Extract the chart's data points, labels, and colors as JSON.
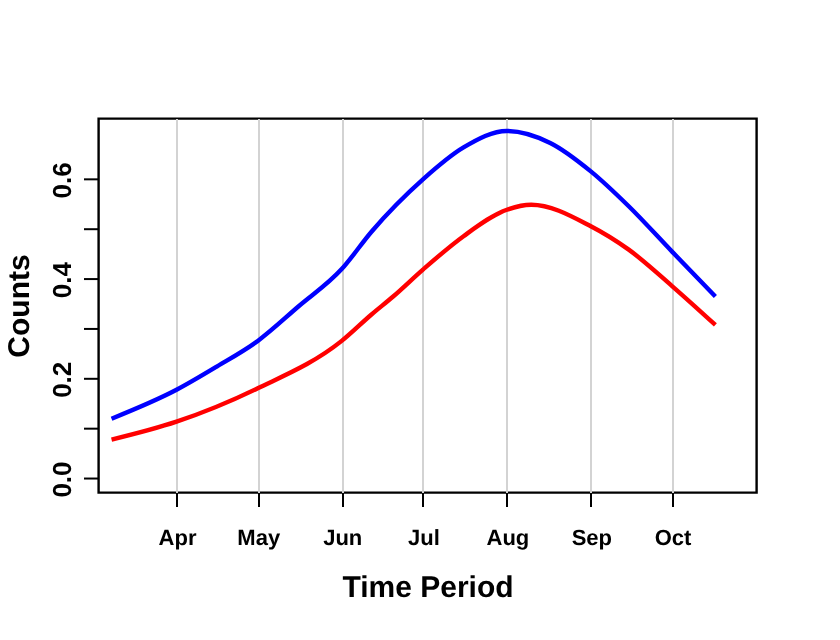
{
  "chart_data": {
    "type": "line",
    "xlabel": "Time Period",
    "ylabel": "Counts",
    "xlim": [
      "--03-03",
      "--11-01"
    ],
    "xticks": [
      {
        "value": "--04-01",
        "label": "Apr"
      },
      {
        "value": "--05-01",
        "label": "May"
      },
      {
        "value": "--06-01",
        "label": "Jun"
      },
      {
        "value": "--07-01",
        "label": "Jul"
      },
      {
        "value": "--08-01",
        "label": "Aug"
      },
      {
        "value": "--09-01",
        "label": "Sep"
      },
      {
        "value": "--10-01",
        "label": "Oct"
      }
    ],
    "ylim": [
      -0.027,
      0.723
    ],
    "yticks": [
      {
        "value": 0,
        "label": "0.0"
      },
      {
        "value": 0.1,
        "label": null
      },
      {
        "value": 0.2,
        "label": "0.2"
      },
      {
        "value": 0.3,
        "label": null
      },
      {
        "value": 0.4,
        "label": "0.4"
      },
      {
        "value": 0.5,
        "label": null
      },
      {
        "value": 0.6,
        "label": "0.6"
      }
    ],
    "grid": "x",
    "series": [
      {
        "color": "#0000ff",
        "x": [
          "--03-08",
          "--04-01",
          "--04-16",
          "--05-01",
          "--05-16",
          "--06-01",
          "--06-12",
          "--07-01",
          "--07-16",
          "--08-01",
          "--08-17",
          "--09-01",
          "--09-15",
          "--10-01",
          "--10-17"
        ],
        "values": [
          0.12,
          0.178,
          0.225,
          0.276,
          0.345,
          0.42,
          0.495,
          0.6,
          0.664,
          0.697,
          0.673,
          0.616,
          0.546,
          0.455,
          0.365
        ]
      },
      {
        "color": "#ff0000",
        "x": [
          "--03-08",
          "--04-01",
          "--05-01",
          "--06-01",
          "--06-12",
          "--06-20",
          "--07-01",
          "--07-16",
          "--08-01",
          "--08-10",
          "--09-01",
          "--09-15",
          "--10-01",
          "--10-17"
        ],
        "values": [
          0.078,
          0.114,
          0.181,
          0.276,
          0.329,
          0.365,
          0.419,
          0.486,
          0.539,
          0.549,
          0.506,
          0.459,
          0.386,
          0.308
        ]
      }
    ]
  }
}
